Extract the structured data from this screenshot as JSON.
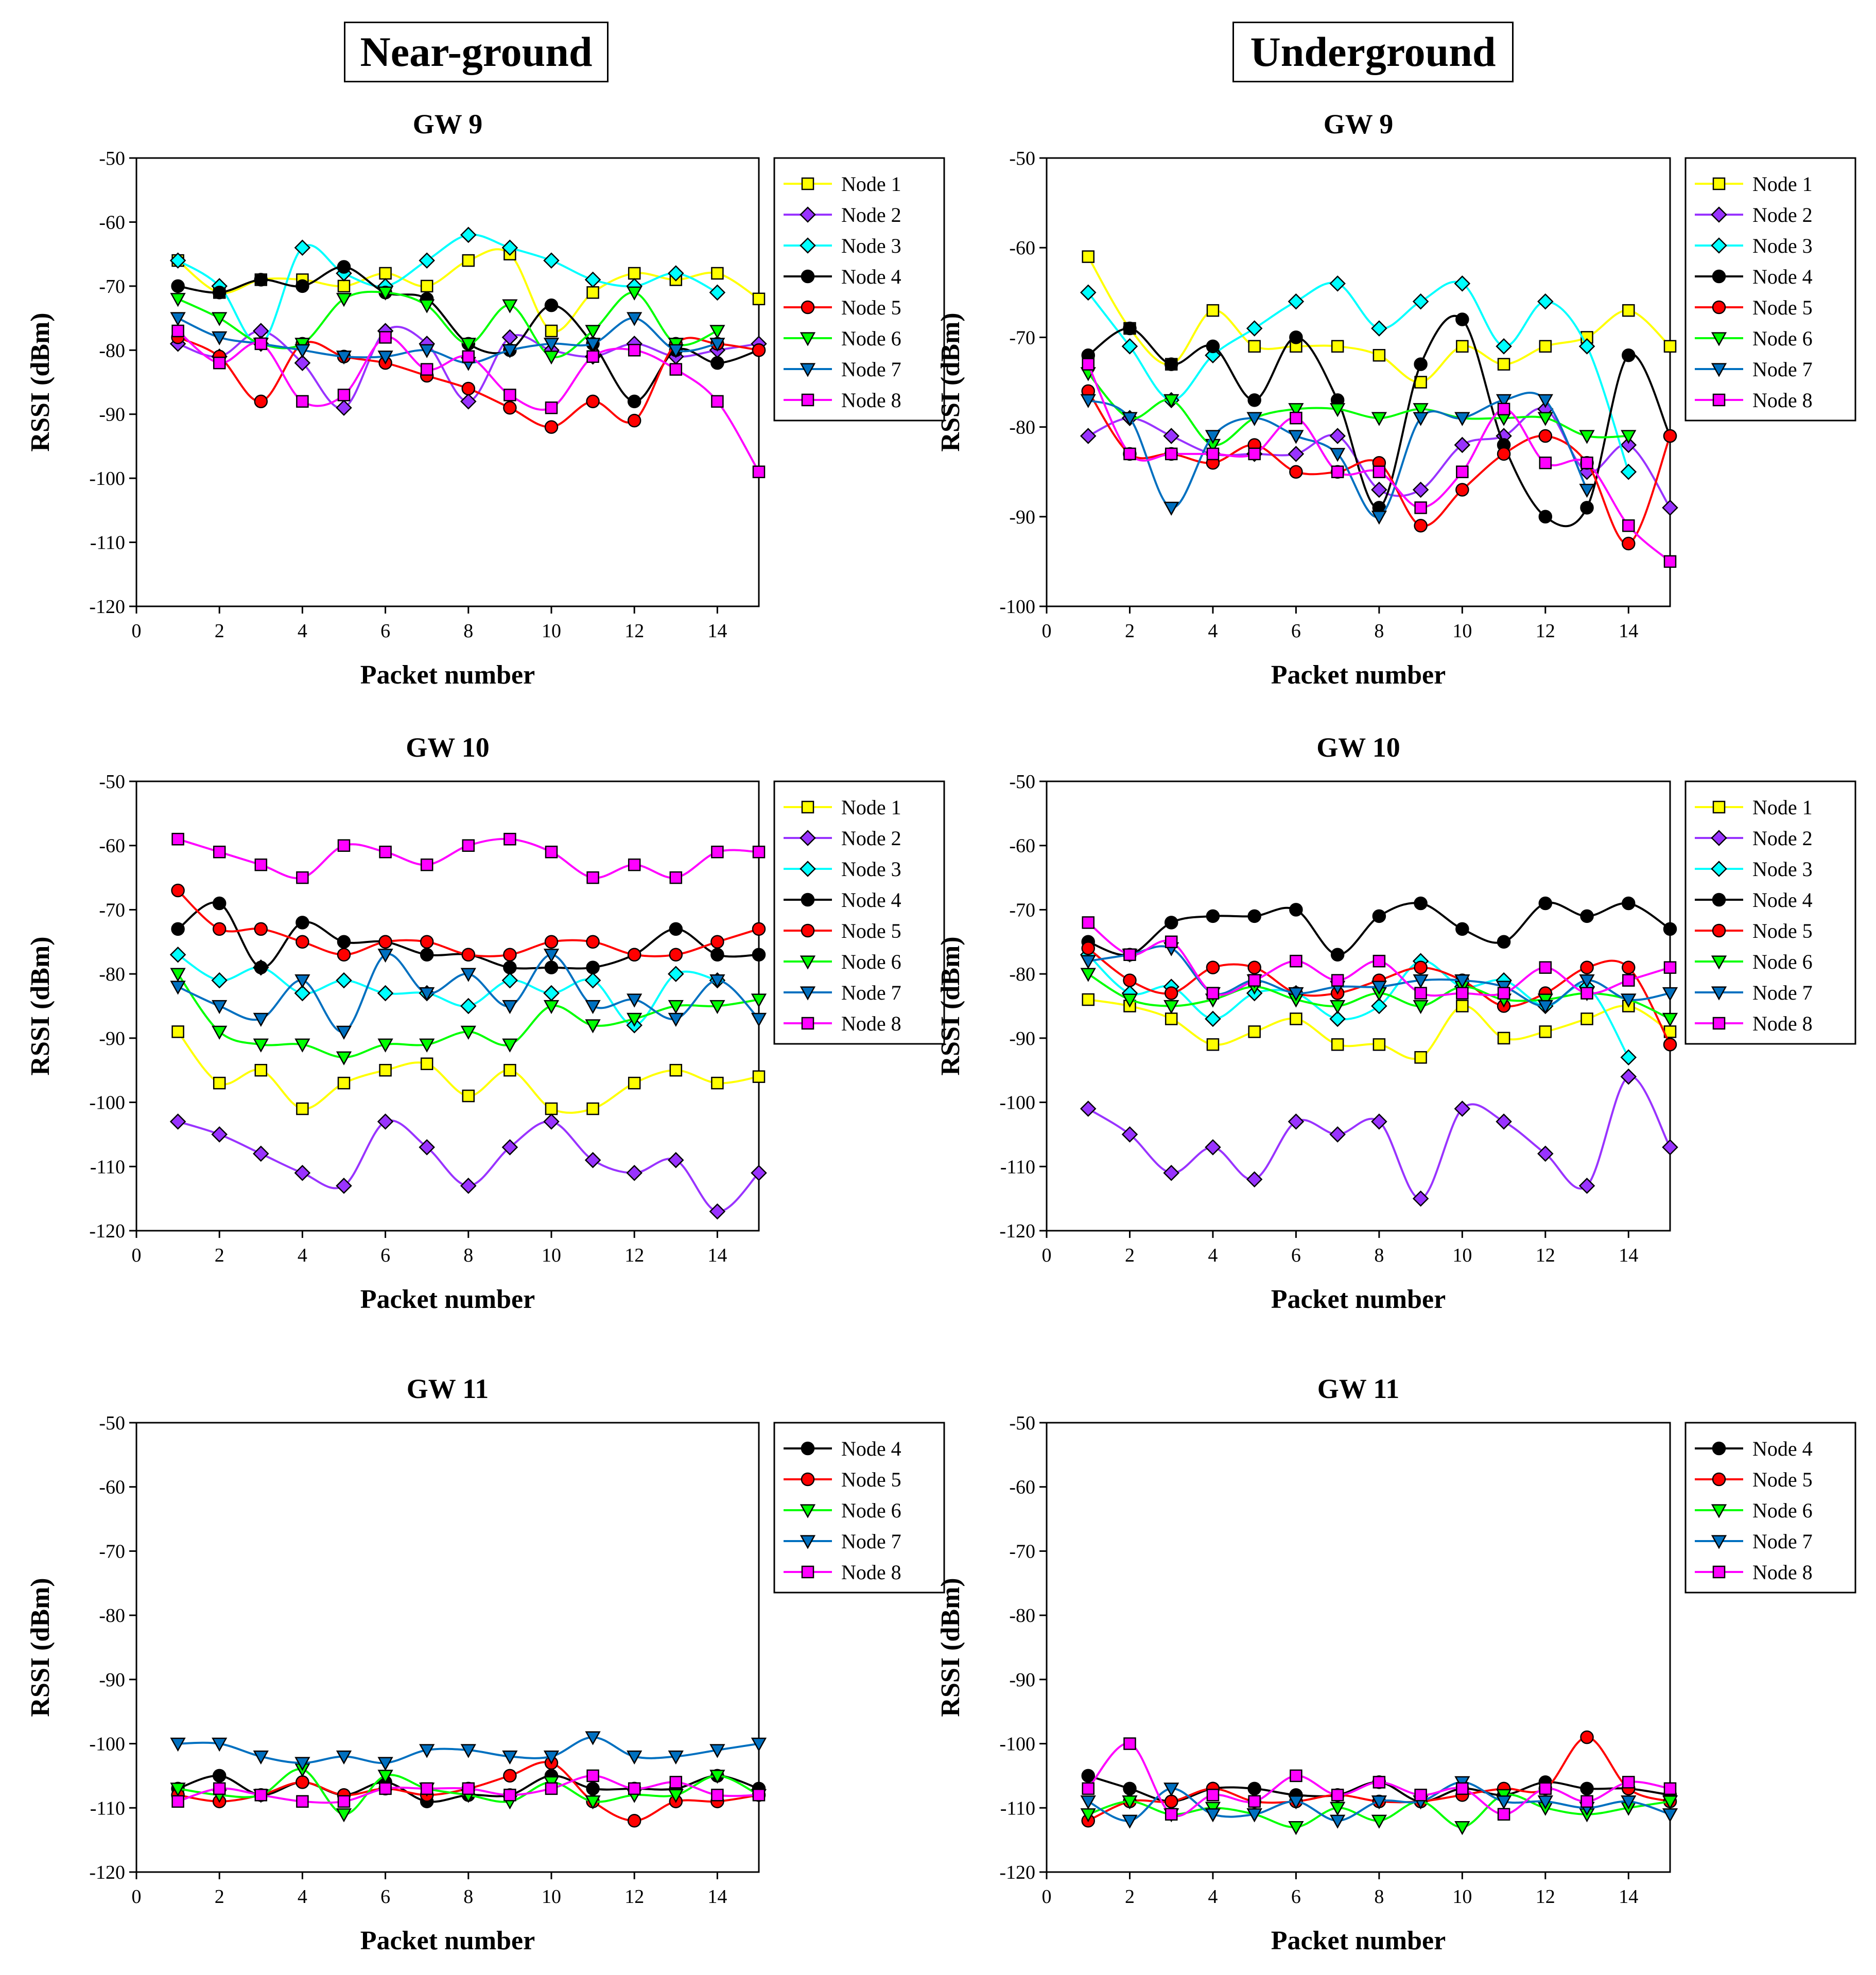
{
  "columns": {
    "left": "Near-ground",
    "right": "Underground"
  },
  "colors": {
    "Node 1": "#ffff00",
    "Node 2": "#9933ff",
    "Node 3": "#00ffff",
    "Node 4": "#000000",
    "Node 5": "#ff0000",
    "Node 6": "#00ff00",
    "Node 7": "#0070c0",
    "Node 8": "#ff00ff"
  },
  "markers": {
    "Node 1": "square",
    "Node 2": "diamond",
    "Node 3": "diamond",
    "Node 4": "circle",
    "Node 5": "circle",
    "Node 6": "triangle-down",
    "Node 7": "triangle-down",
    "Node 8": "square"
  },
  "chart_data": [
    {
      "type": "line",
      "panel": "Near-ground",
      "title": "GW 9",
      "xlabel": "Packet number",
      "ylabel": "RSSI (dBm)",
      "xlim": [
        0,
        15
      ],
      "ylim": [
        -120,
        -50
      ],
      "xticks": [
        0,
        2,
        4,
        6,
        8,
        10,
        12,
        14
      ],
      "yticks": [
        -120,
        -110,
        -100,
        -90,
        -80,
        -70,
        -60,
        -50
      ],
      "legend": "right",
      "x": [
        1,
        2,
        3,
        4,
        5,
        6,
        7,
        8,
        9,
        10,
        11,
        12,
        13,
        14,
        15
      ],
      "series": [
        {
          "name": "Node 1",
          "values": [
            -66,
            -71,
            -69,
            -69,
            -70,
            -68,
            -70,
            -66,
            -65,
            -77,
            -71,
            -68,
            -69,
            -68,
            -72
          ]
        },
        {
          "name": "Node 2",
          "values": [
            -79,
            -81,
            -77,
            -82,
            -89,
            -77,
            -79,
            -88,
            -78,
            -80,
            -81,
            -79,
            -81,
            -80,
            -79
          ]
        },
        {
          "name": "Node 3",
          "values": [
            -66,
            -70,
            -79,
            -64,
            -68,
            -70,
            -66,
            -62,
            -64,
            -66,
            -69,
            -70,
            -68,
            -71,
            null
          ]
        },
        {
          "name": "Node 4",
          "values": [
            -70,
            -71,
            -69,
            -70,
            -67,
            -71,
            -72,
            -79,
            -80,
            -73,
            -79,
            -88,
            -80,
            -82,
            -80
          ]
        },
        {
          "name": "Node 5",
          "values": [
            -78,
            -81,
            -88,
            -79,
            -81,
            -82,
            -84,
            -86,
            -89,
            -92,
            -88,
            -91,
            -79,
            -79,
            -80
          ]
        },
        {
          "name": "Node 6",
          "values": [
            -72,
            -75,
            -79,
            -79,
            -72,
            -71,
            -73,
            -79,
            -73,
            -81,
            -77,
            -71,
            -79,
            -77,
            null
          ]
        },
        {
          "name": "Node 7",
          "values": [
            -75,
            -78,
            -79,
            -80,
            -81,
            -81,
            -80,
            -82,
            -80,
            -79,
            -79,
            -75,
            -80,
            -79,
            null
          ]
        },
        {
          "name": "Node 8",
          "values": [
            -77,
            -82,
            -79,
            -88,
            -87,
            -78,
            -83,
            -81,
            -87,
            -89,
            -81,
            -80,
            -83,
            -88,
            -99
          ]
        }
      ]
    },
    {
      "type": "line",
      "panel": "Underground",
      "title": "GW 9",
      "xlabel": "Packet number",
      "ylabel": "RSSI (dBm)",
      "xlim": [
        0,
        15
      ],
      "ylim": [
        -100,
        -50
      ],
      "xticks": [
        0,
        2,
        4,
        6,
        8,
        10,
        12,
        14
      ],
      "yticks": [
        -100,
        -90,
        -80,
        -70,
        -60,
        -50
      ],
      "legend": "right",
      "x": [
        1,
        2,
        3,
        4,
        5,
        6,
        7,
        8,
        9,
        10,
        11,
        12,
        13,
        14,
        15
      ],
      "series": [
        {
          "name": "Node 1",
          "values": [
            -61,
            -69,
            -73,
            -67,
            -71,
            -71,
            -71,
            -72,
            -75,
            -71,
            -73,
            -71,
            -70,
            -67,
            -71
          ]
        },
        {
          "name": "Node 2",
          "values": [
            -81,
            -79,
            -81,
            -83,
            -83,
            -83,
            -81,
            -87,
            -87,
            -82,
            -81,
            -78,
            -85,
            -82,
            -89
          ]
        },
        {
          "name": "Node 3",
          "values": [
            -65,
            -71,
            -77,
            -72,
            -69,
            -66,
            -64,
            -69,
            -66,
            -64,
            -71,
            -66,
            -71,
            -85,
            null
          ]
        },
        {
          "name": "Node 4",
          "values": [
            -72,
            -69,
            -73,
            -71,
            -77,
            -70,
            -77,
            -89,
            -73,
            -68,
            -82,
            -90,
            -89,
            -72,
            -81
          ]
        },
        {
          "name": "Node 5",
          "values": [
            -76,
            -83,
            -83,
            -84,
            -82,
            -85,
            -85,
            -84,
            -91,
            -87,
            -83,
            -81,
            -84,
            -93,
            -81
          ]
        },
        {
          "name": "Node 6",
          "values": [
            -74,
            -79,
            -77,
            -82,
            -79,
            -78,
            -78,
            -79,
            -78,
            -79,
            -79,
            -79,
            -81,
            -81,
            null
          ]
        },
        {
          "name": "Node 7",
          "values": [
            -77,
            -79,
            -89,
            -81,
            -79,
            -81,
            -83,
            -90,
            -79,
            -79,
            -77,
            -77,
            -87,
            null,
            null
          ]
        },
        {
          "name": "Node 8",
          "values": [
            -73,
            -83,
            -83,
            -83,
            -83,
            -79,
            -85,
            -85,
            -89,
            -85,
            -78,
            -84,
            -84,
            -91,
            -95
          ]
        }
      ]
    },
    {
      "type": "line",
      "panel": "Near-ground",
      "title": "GW 10",
      "xlabel": "Packet number",
      "ylabel": "RSSI (dBm)",
      "xlim": [
        0,
        15
      ],
      "ylim": [
        -120,
        -50
      ],
      "xticks": [
        0,
        2,
        4,
        6,
        8,
        10,
        12,
        14
      ],
      "yticks": [
        -120,
        -110,
        -100,
        -90,
        -80,
        -70,
        -60,
        -50
      ],
      "legend": "right",
      "x": [
        1,
        2,
        3,
        4,
        5,
        6,
        7,
        8,
        9,
        10,
        11,
        12,
        13,
        14,
        15
      ],
      "series": [
        {
          "name": "Node 1",
          "values": [
            -89,
            -97,
            -95,
            -101,
            -97,
            -95,
            -94,
            -99,
            -95,
            -101,
            -101,
            -97,
            -95,
            -97,
            -96
          ]
        },
        {
          "name": "Node 2",
          "values": [
            -103,
            -105,
            -108,
            -111,
            -113,
            -103,
            -107,
            -113,
            -107,
            -103,
            -109,
            -111,
            -109,
            -117,
            -111
          ]
        },
        {
          "name": "Node 3",
          "values": [
            -77,
            -81,
            -79,
            -83,
            -81,
            -83,
            -83,
            -85,
            -81,
            -83,
            -81,
            -88,
            -80,
            -81,
            null
          ]
        },
        {
          "name": "Node 4",
          "values": [
            -73,
            -69,
            -79,
            -72,
            -75,
            -75,
            -77,
            -77,
            -79,
            -79,
            -79,
            -77,
            -73,
            -77,
            -77
          ]
        },
        {
          "name": "Node 5",
          "values": [
            -67,
            -73,
            -73,
            -75,
            -77,
            -75,
            -75,
            -77,
            -77,
            -75,
            -75,
            -77,
            -77,
            -75,
            -73
          ]
        },
        {
          "name": "Node 6",
          "values": [
            -80,
            -89,
            -91,
            -91,
            -93,
            -91,
            -91,
            -89,
            -91,
            -85,
            -88,
            -87,
            -85,
            -85,
            -84
          ]
        },
        {
          "name": "Node 7",
          "values": [
            -82,
            -85,
            -87,
            -81,
            -89,
            -77,
            -83,
            -80,
            -85,
            -77,
            -85,
            -84,
            -87,
            -81,
            -87
          ]
        },
        {
          "name": "Node 8",
          "values": [
            -59,
            -61,
            -63,
            -65,
            -60,
            -61,
            -63,
            -60,
            -59,
            -61,
            -65,
            -63,
            -65,
            -61,
            -61
          ]
        }
      ]
    },
    {
      "type": "line",
      "panel": "Underground",
      "title": "GW 10",
      "xlabel": "Packet number",
      "ylabel": "RSSI (dBm)",
      "xlim": [
        0,
        15
      ],
      "ylim": [
        -120,
        -50
      ],
      "xticks": [
        0,
        2,
        4,
        6,
        8,
        10,
        12,
        14
      ],
      "yticks": [
        -120,
        -110,
        -100,
        -90,
        -80,
        -70,
        -60,
        -50
      ],
      "legend": "right",
      "x": [
        1,
        2,
        3,
        4,
        5,
        6,
        7,
        8,
        9,
        10,
        11,
        12,
        13,
        14,
        15
      ],
      "series": [
        {
          "name": "Node 1",
          "values": [
            -84,
            -85,
            -87,
            -91,
            -89,
            -87,
            -91,
            -91,
            -93,
            -85,
            -90,
            -89,
            -87,
            -85,
            -89
          ]
        },
        {
          "name": "Node 2",
          "values": [
            -101,
            -105,
            -111,
            -107,
            -112,
            -103,
            -105,
            -103,
            -115,
            -101,
            -103,
            -108,
            -113,
            -96,
            -107
          ]
        },
        {
          "name": "Node 3",
          "values": [
            -77,
            -83,
            -82,
            -87,
            -83,
            -83,
            -87,
            -85,
            -78,
            -82,
            -81,
            -85,
            -82,
            -93,
            null
          ]
        },
        {
          "name": "Node 4",
          "values": [
            -75,
            -77,
            -72,
            -71,
            -71,
            -70,
            -77,
            -71,
            -69,
            -73,
            -75,
            -69,
            -71,
            -69,
            -73
          ]
        },
        {
          "name": "Node 5",
          "values": [
            -76,
            -81,
            -83,
            -79,
            -79,
            -83,
            -83,
            -81,
            -79,
            -81,
            -85,
            -83,
            -79,
            -79,
            -91
          ]
        },
        {
          "name": "Node 6",
          "values": [
            -80,
            -84,
            -85,
            -84,
            -82,
            -84,
            -85,
            -83,
            -85,
            -82,
            -84,
            -84,
            -83,
            -84,
            -87
          ]
        },
        {
          "name": "Node 7",
          "values": [
            -78,
            -77,
            -76,
            -83,
            -81,
            -83,
            -82,
            -82,
            -81,
            -81,
            -82,
            -85,
            -81,
            -84,
            -83
          ]
        },
        {
          "name": "Node 8",
          "values": [
            -72,
            -77,
            -75,
            -83,
            -81,
            -78,
            -81,
            -78,
            -83,
            -83,
            -83,
            -79,
            -83,
            -81,
            -79
          ]
        }
      ]
    },
    {
      "type": "line",
      "panel": "Near-ground",
      "title": "GW 11",
      "xlabel": "Packet number",
      "ylabel": "RSSI (dBm)",
      "xlim": [
        0,
        15
      ],
      "ylim": [
        -120,
        -50
      ],
      "xticks": [
        0,
        2,
        4,
        6,
        8,
        10,
        12,
        14
      ],
      "yticks": [
        -120,
        -110,
        -100,
        -90,
        -80,
        -70,
        -60,
        -50
      ],
      "legend": "right",
      "x": [
        1,
        2,
        3,
        4,
        5,
        6,
        7,
        8,
        9,
        10,
        11,
        12,
        13,
        14,
        15
      ],
      "series": [
        {
          "name": "Node 4",
          "values": [
            -107,
            -105,
            -108,
            -106,
            -108,
            -106,
            -109,
            -108,
            -108,
            -105,
            -107,
            -107,
            -107,
            -105,
            -107
          ]
        },
        {
          "name": "Node 5",
          "values": [
            -108,
            -109,
            -108,
            -106,
            -108,
            -107,
            -108,
            -107,
            -105,
            -103,
            -109,
            -112,
            -109,
            -109,
            -108
          ]
        },
        {
          "name": "Node 6",
          "values": [
            -107,
            -108,
            -108,
            -104,
            -111,
            -105,
            -107,
            -108,
            -109,
            -106,
            -109,
            -108,
            -108,
            -105,
            -108
          ]
        },
        {
          "name": "Node 7",
          "values": [
            -100,
            -100,
            -102,
            -103,
            -102,
            -103,
            -101,
            -101,
            -102,
            -102,
            -99,
            -102,
            -102,
            -101,
            -100
          ]
        },
        {
          "name": "Node 8",
          "values": [
            -109,
            -107,
            -108,
            -109,
            -109,
            -107,
            -107,
            -107,
            -108,
            -107,
            -105,
            -107,
            -106,
            -108,
            -108
          ]
        }
      ]
    },
    {
      "type": "line",
      "panel": "Underground",
      "title": "GW 11",
      "xlabel": "Packet number",
      "ylabel": "RSSI (dBm)",
      "xlim": [
        0,
        15
      ],
      "ylim": [
        -120,
        -50
      ],
      "xticks": [
        0,
        2,
        4,
        6,
        8,
        10,
        12,
        14
      ],
      "yticks": [
        -120,
        -110,
        -100,
        -90,
        -80,
        -70,
        -60,
        -50
      ],
      "legend": "right",
      "x": [
        1,
        2,
        3,
        4,
        5,
        6,
        7,
        8,
        9,
        10,
        11,
        12,
        13,
        14,
        15
      ],
      "series": [
        {
          "name": "Node 4",
          "values": [
            -105,
            -107,
            -109,
            -107,
            -107,
            -108,
            -108,
            -106,
            -109,
            -107,
            -108,
            -106,
            -107,
            -107,
            -108
          ]
        },
        {
          "name": "Node 5",
          "values": [
            -112,
            -109,
            -109,
            -107,
            -109,
            -109,
            -108,
            -109,
            -109,
            -108,
            -107,
            -107,
            -99,
            -107,
            -109
          ]
        },
        {
          "name": "Node 6",
          "values": [
            -111,
            -109,
            -111,
            -110,
            -111,
            -113,
            -110,
            -112,
            -109,
            -113,
            -108,
            -110,
            -111,
            -110,
            -109
          ]
        },
        {
          "name": "Node 7",
          "values": [
            -109,
            -112,
            -107,
            -111,
            -111,
            -109,
            -112,
            -109,
            -109,
            -106,
            -109,
            -109,
            -110,
            -109,
            -111
          ]
        },
        {
          "name": "Node 8",
          "values": [
            -107,
            -100,
            -111,
            -108,
            -109,
            -105,
            -108,
            -106,
            -108,
            -107,
            -111,
            -107,
            -109,
            -106,
            -107
          ]
        }
      ]
    }
  ]
}
